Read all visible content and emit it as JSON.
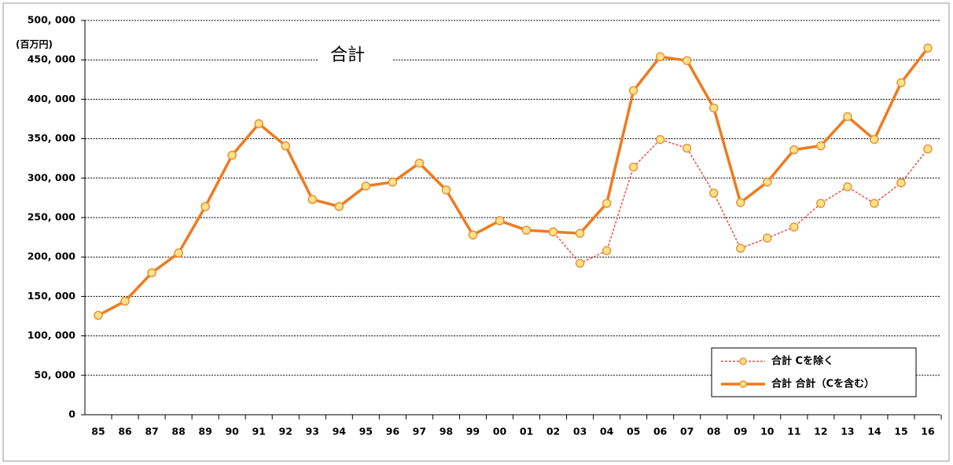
{
  "chart_data": {
    "type": "line",
    "title": "合計",
    "y_label": "(百万円)",
    "categories": [
      "85",
      "86",
      "87",
      "88",
      "89",
      "90",
      "91",
      "92",
      "93",
      "94",
      "95",
      "96",
      "97",
      "98",
      "99",
      "00",
      "01",
      "02",
      "03",
      "04",
      "05",
      "06",
      "07",
      "08",
      "09",
      "10",
      "11",
      "12",
      "13",
      "14",
      "15",
      "16"
    ],
    "series": [
      {
        "name": "合計 Cを除く",
        "color": "#e8504a",
        "style": "dotted",
        "values": [
          126000,
          144000,
          180000,
          205000,
          264000,
          329000,
          369000,
          341000,
          273000,
          264000,
          290000,
          295000,
          319000,
          285000,
          228000,
          246000,
          234000,
          232000,
          192000,
          208000,
          314000,
          349000,
          338000,
          281000,
          211000,
          224000,
          238000,
          268000,
          289000,
          268000,
          294000,
          337000
        ]
      },
      {
        "name": "合計 合計（Cを含む）",
        "color": "#f07a1e",
        "style": "solid",
        "values": [
          126000,
          144000,
          180000,
          205000,
          264000,
          329000,
          369000,
          341000,
          273000,
          264000,
          290000,
          295000,
          319000,
          285000,
          228000,
          246000,
          234000,
          232000,
          230000,
          268000,
          411000,
          454000,
          449000,
          389000,
          269000,
          295000,
          336000,
          341000,
          378000,
          349000,
          421000,
          465000
        ]
      }
    ],
    "ylim": [
      0,
      500000
    ],
    "yticks": [
      0,
      {
        "value": 50000,
        "label": "50, 000"
      },
      {
        "value": 100000,
        "label": "100, 000"
      },
      {
        "value": 150000,
        "label": "150, 000"
      },
      {
        "value": 200000,
        "label": "200, 000"
      },
      {
        "value": 250000,
        "label": "250, 000"
      },
      {
        "value": 300000,
        "label": "300, 000"
      },
      {
        "value": 350000,
        "label": "350, 000"
      },
      {
        "value": 400000,
        "label": "400, 000"
      },
      {
        "value": 450000,
        "label": "450, 000"
      },
      {
        "value": 500000,
        "label": "500, 000"
      }
    ],
    "grid": true,
    "legend": "lower right",
    "marker_fill": "#ffe28a",
    "marker_edge": "#e8963a"
  }
}
